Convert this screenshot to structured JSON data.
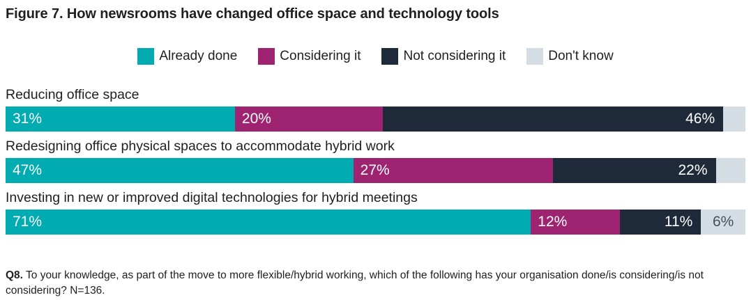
{
  "title": "Figure 7. How newsrooms have changed office space and technology tools",
  "legend": [
    {
      "label": "Already done",
      "color": "#00abb1"
    },
    {
      "label": "Considering it",
      "color": "#9e2472"
    },
    {
      "label": "Not considering it",
      "color": "#1e2a3a"
    },
    {
      "label": "Don't know",
      "color": "#d3dde3"
    }
  ],
  "footnote": {
    "prefix": "Q8.",
    "text": " To your knowledge, as part of the move to more flexible/hybrid working, which of the following has your organisation done/is considering/is not considering? N=136."
  },
  "chart_data": {
    "type": "bar",
    "subtype": "horizontal-stacked-100pct",
    "title": "Figure 7. How newsrooms have changed office space and technology tools",
    "categories": [
      "Reducing office space",
      "Redesigning office physical spaces to accommodate hybrid work",
      "Investing in new or improved digital technologies for hybrid meetings"
    ],
    "series": [
      {
        "name": "Already done",
        "slug": "already-done",
        "color": "#00abb1",
        "values": [
          31,
          47,
          71
        ]
      },
      {
        "name": "Considering it",
        "slug": "considering-it",
        "color": "#9e2472",
        "values": [
          20,
          27,
          12
        ]
      },
      {
        "name": "Not considering it",
        "slug": "not-considering-it",
        "color": "#1e2a3a",
        "values": [
          46,
          22,
          11
        ]
      },
      {
        "name": "Don't know",
        "slug": "dont-know",
        "color": "#d3dde3",
        "values": [
          3,
          4,
          6
        ]
      }
    ],
    "segment_labels": [
      [
        "31%",
        "20%",
        "46%",
        ""
      ],
      [
        "47%",
        "27%",
        "22%",
        ""
      ],
      [
        "71%",
        "12%",
        "11%",
        "6%"
      ]
    ],
    "xlim": [
      0,
      100
    ],
    "grid": false,
    "legend_position": "top-center",
    "value_label_color_on_dark": "#ffffff",
    "value_label_color_on_light": "#474f58"
  }
}
